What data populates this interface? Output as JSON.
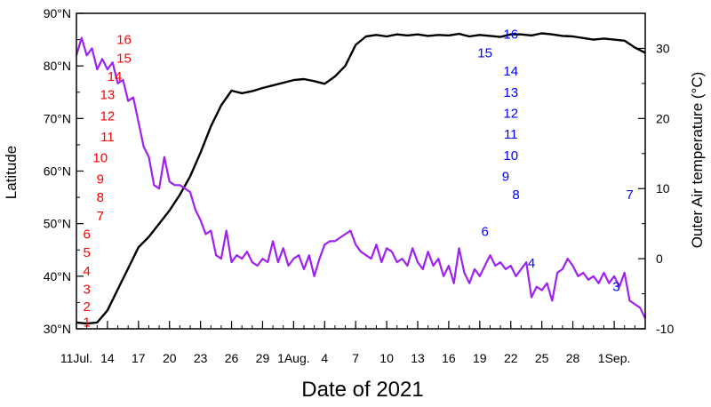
{
  "chart_data": {
    "type": "line",
    "title": "",
    "xlabel": "Date of 2021",
    "ylabel_left": "Latitude",
    "ylabel_right": "Outer Air temperature (°C)",
    "x_range": [
      "2021-07-11",
      "2021-09-04"
    ],
    "y_left_range": [
      30,
      90
    ],
    "y_right_range": [
      -10,
      35
    ],
    "x_ticks": [
      {
        "date": "2021-07-11",
        "label": "11Jul."
      },
      {
        "date": "2021-07-14",
        "label": "14"
      },
      {
        "date": "2021-07-17",
        "label": "17"
      },
      {
        "date": "2021-07-20",
        "label": "20"
      },
      {
        "date": "2021-07-23",
        "label": "23"
      },
      {
        "date": "2021-07-26",
        "label": "26"
      },
      {
        "date": "2021-07-29",
        "label": "29"
      },
      {
        "date": "2021-08-01",
        "label": "1Aug."
      },
      {
        "date": "2021-08-04",
        "label": "4"
      },
      {
        "date": "2021-08-07",
        "label": "7"
      },
      {
        "date": "2021-08-10",
        "label": "10"
      },
      {
        "date": "2021-08-13",
        "label": "13"
      },
      {
        "date": "2021-08-16",
        "label": "16"
      },
      {
        "date": "2021-08-19",
        "label": "19"
      },
      {
        "date": "2021-08-22",
        "label": "22"
      },
      {
        "date": "2021-08-25",
        "label": "25"
      },
      {
        "date": "2021-08-28",
        "label": "28"
      },
      {
        "date": "2021-09-01",
        "label": "1Sep."
      }
    ],
    "y_left_ticks": [
      {
        "value": 30,
        "label": "30°N"
      },
      {
        "value": 40,
        "label": "40°N"
      },
      {
        "value": 50,
        "label": "50°N"
      },
      {
        "value": 60,
        "label": "60°N"
      },
      {
        "value": 70,
        "label": "70°N"
      },
      {
        "value": 80,
        "label": "80°N"
      },
      {
        "value": 90,
        "label": "90°N"
      }
    ],
    "y_right_ticks": [
      {
        "value": -10,
        "label": "-10"
      },
      {
        "value": 0,
        "label": "0"
      },
      {
        "value": 10,
        "label": "10"
      },
      {
        "value": 20,
        "label": "20"
      },
      {
        "value": 30,
        "label": "30"
      }
    ],
    "colors": {
      "latitude": "#000000",
      "temperature": "#a020f0",
      "anno_red": "#ff0000",
      "anno_blue": "#0000ff"
    },
    "series": [
      {
        "axis": "left",
        "color": "#000000",
        "points": [
          [
            "2021-07-11",
            31.2
          ],
          [
            "2021-07-12",
            31.0
          ],
          [
            "2021-07-13",
            31.2
          ],
          [
            "2021-07-14",
            33.5
          ],
          [
            "2021-07-15",
            37.5
          ],
          [
            "2021-07-16",
            41.5
          ],
          [
            "2021-07-17",
            45.5
          ],
          [
            "2021-07-18",
            47.5
          ],
          [
            "2021-07-19",
            50.0
          ],
          [
            "2021-07-20",
            52.5
          ],
          [
            "2021-07-21",
            55.5
          ],
          [
            "2021-07-22",
            59.0
          ],
          [
            "2021-07-23",
            63.5
          ],
          [
            "2021-07-24",
            68.5
          ],
          [
            "2021-07-25",
            72.5
          ],
          [
            "2021-07-26",
            75.3
          ],
          [
            "2021-07-27",
            74.8
          ],
          [
            "2021-07-28",
            75.2
          ],
          [
            "2021-07-29",
            75.8
          ],
          [
            "2021-07-30",
            76.3
          ],
          [
            "2021-07-31",
            76.8
          ],
          [
            "2021-08-01",
            77.3
          ],
          [
            "2021-08-02",
            77.5
          ],
          [
            "2021-08-03",
            77.1
          ],
          [
            "2021-08-04",
            76.6
          ],
          [
            "2021-08-05",
            78.0
          ],
          [
            "2021-08-06",
            80.0
          ],
          [
            "2021-08-07",
            84.0
          ],
          [
            "2021-08-08",
            85.6
          ],
          [
            "2021-08-09",
            85.9
          ],
          [
            "2021-08-10",
            85.6
          ],
          [
            "2021-08-11",
            86.0
          ],
          [
            "2021-08-12",
            85.8
          ],
          [
            "2021-08-13",
            86.0
          ],
          [
            "2021-08-14",
            85.7
          ],
          [
            "2021-08-15",
            85.9
          ],
          [
            "2021-08-16",
            85.8
          ],
          [
            "2021-08-17",
            86.1
          ],
          [
            "2021-08-18",
            85.6
          ],
          [
            "2021-08-19",
            85.9
          ],
          [
            "2021-08-20",
            85.7
          ],
          [
            "2021-08-21",
            85.5
          ],
          [
            "2021-08-22",
            86.0
          ],
          [
            "2021-08-23",
            86.0
          ],
          [
            "2021-08-24",
            85.8
          ],
          [
            "2021-08-25",
            86.2
          ],
          [
            "2021-08-26",
            86.0
          ],
          [
            "2021-08-27",
            85.7
          ],
          [
            "2021-08-28",
            85.6
          ],
          [
            "2021-08-29",
            85.3
          ],
          [
            "2021-08-30",
            85.0
          ],
          [
            "2021-08-31",
            85.2
          ],
          [
            "2021-09-01",
            85.0
          ],
          [
            "2021-09-02",
            84.8
          ],
          [
            "2021-09-03",
            83.5
          ],
          [
            "2021-09-04",
            82.5
          ]
        ]
      },
      {
        "axis": "right",
        "color": "#a020f0",
        "points": [
          [
            "2021-07-11",
            29.0
          ],
          [
            "2021-07-11.5",
            31.5
          ],
          [
            "2021-07-12",
            29.0
          ],
          [
            "2021-07-12.5",
            30.0
          ],
          [
            "2021-07-13",
            27.0
          ],
          [
            "2021-07-13.5",
            28.5
          ],
          [
            "2021-07-14",
            27.0
          ],
          [
            "2021-07-14.5",
            28.0
          ],
          [
            "2021-07-15",
            25.0
          ],
          [
            "2021-07-15.5",
            25.5
          ],
          [
            "2021-07-16",
            22.5
          ],
          [
            "2021-07-16.5",
            23.0
          ],
          [
            "2021-07-17",
            19.5
          ],
          [
            "2021-07-17.5",
            16.0
          ],
          [
            "2021-07-18",
            14.5
          ],
          [
            "2021-07-18.5",
            10.5
          ],
          [
            "2021-07-19",
            10.0
          ],
          [
            "2021-07-19.5",
            14.5
          ],
          [
            "2021-07-20",
            11.0
          ],
          [
            "2021-07-20.5",
            10.5
          ],
          [
            "2021-07-21",
            10.5
          ],
          [
            "2021-07-21.5",
            10.0
          ],
          [
            "2021-07-22",
            9.5
          ],
          [
            "2021-07-22.5",
            7.0
          ],
          [
            "2021-07-23",
            5.5
          ],
          [
            "2021-07-23.5",
            3.5
          ],
          [
            "2021-07-24",
            4.0
          ],
          [
            "2021-07-24.5",
            0.5
          ],
          [
            "2021-07-25",
            0.0
          ],
          [
            "2021-07-25.5",
            4.0
          ],
          [
            "2021-07-26",
            -0.5
          ],
          [
            "2021-07-26.5",
            0.5
          ],
          [
            "2021-07-27",
            0.0
          ],
          [
            "2021-07-27.5",
            1.0
          ],
          [
            "2021-07-28",
            -0.5
          ],
          [
            "2021-07-28.5",
            -1.0
          ],
          [
            "2021-07-29",
            0.0
          ],
          [
            "2021-07-29.5",
            -0.5
          ],
          [
            "2021-07-30",
            2.5
          ],
          [
            "2021-07-30.5",
            -0.5
          ],
          [
            "2021-07-31",
            1.5
          ],
          [
            "2021-07-31.5",
            -1.0
          ],
          [
            "2021-08-01",
            0.0
          ],
          [
            "2021-08-01.5",
            0.5
          ],
          [
            "2021-08-02",
            -1.5
          ],
          [
            "2021-08-02.5",
            0.5
          ],
          [
            "2021-08-03",
            -2.5
          ],
          [
            "2021-08-03.5",
            0.0
          ],
          [
            "2021-08-04",
            2.0
          ],
          [
            "2021-08-04.5",
            2.5
          ],
          [
            "2021-08-05",
            2.5
          ],
          [
            "2021-08-05.5",
            3.0
          ],
          [
            "2021-08-06",
            3.5
          ],
          [
            "2021-08-06.5",
            4.0
          ],
          [
            "2021-08-07",
            2.0
          ],
          [
            "2021-08-07.5",
            1.0
          ],
          [
            "2021-08-08",
            0.5
          ],
          [
            "2021-08-08.5",
            0.0
          ],
          [
            "2021-08-09",
            2.0
          ],
          [
            "2021-08-09.5",
            -0.5
          ],
          [
            "2021-08-10",
            1.5
          ],
          [
            "2021-08-10.5",
            1.0
          ],
          [
            "2021-08-11",
            -0.5
          ],
          [
            "2021-08-11.5",
            0.0
          ],
          [
            "2021-08-12",
            -1.0
          ],
          [
            "2021-08-12.5",
            1.5
          ],
          [
            "2021-08-13",
            -0.5
          ],
          [
            "2021-08-13.5",
            -1.5
          ],
          [
            "2021-08-14",
            1.0
          ],
          [
            "2021-08-14.5",
            -1.0
          ],
          [
            "2021-08-15",
            0.0
          ],
          [
            "2021-08-15.5",
            -2.5
          ],
          [
            "2021-08-16",
            -1.0
          ],
          [
            "2021-08-16.5",
            -3.5
          ],
          [
            "2021-08-17",
            1.5
          ],
          [
            "2021-08-17.5",
            -2.0
          ],
          [
            "2021-08-18",
            -3.5
          ],
          [
            "2021-08-18.5",
            -1.5
          ],
          [
            "2021-08-19",
            -2.5
          ],
          [
            "2021-08-19.5",
            -1.0
          ],
          [
            "2021-08-20",
            0.5
          ],
          [
            "2021-08-20.5",
            -1.0
          ],
          [
            "2021-08-21",
            -0.5
          ],
          [
            "2021-08-21.5",
            -1.5
          ],
          [
            "2021-08-22",
            -1.0
          ],
          [
            "2021-08-22.5",
            -2.5
          ],
          [
            "2021-08-23",
            -1.5
          ],
          [
            "2021-08-23.5",
            -0.5
          ],
          [
            "2021-08-24",
            -5.5
          ],
          [
            "2021-08-24.5",
            -4.0
          ],
          [
            "2021-08-25",
            -4.5
          ],
          [
            "2021-08-25.5",
            -3.5
          ],
          [
            "2021-08-26",
            -6.0
          ],
          [
            "2021-08-26.5",
            -2.0
          ],
          [
            "2021-08-27",
            -1.5
          ],
          [
            "2021-08-27.5",
            0.0
          ],
          [
            "2021-08-28",
            -1.0
          ],
          [
            "2021-08-28.5",
            -2.5
          ],
          [
            "2021-08-29",
            -2.0
          ],
          [
            "2021-08-29.5",
            -3.0
          ],
          [
            "2021-08-30",
            -2.5
          ],
          [
            "2021-08-30.5",
            -3.5
          ],
          [
            "2021-08-31",
            -2.0
          ],
          [
            "2021-08-31.5",
            -3.5
          ],
          [
            "2021-09-01",
            -2.5
          ],
          [
            "2021-09-01.5",
            -4.0
          ],
          [
            "2021-09-02",
            -2.0
          ],
          [
            "2021-09-02.5",
            -6.0
          ],
          [
            "2021-09-03",
            -6.5
          ],
          [
            "2021-09-03.5",
            -7.0
          ],
          [
            "2021-09-04",
            -8.5
          ]
        ]
      }
    ],
    "annotations_red": [
      {
        "label": "1",
        "date": "2021-07-11",
        "offset_days": 1.0,
        "lat": 31.3
      },
      {
        "label": "2",
        "date": "2021-07-11",
        "offset_days": 1.0,
        "lat": 34.2
      },
      {
        "label": "3",
        "date": "2021-07-11",
        "offset_days": 1.0,
        "lat": 37.5
      },
      {
        "label": "4",
        "date": "2021-07-11",
        "offset_days": 1.0,
        "lat": 41.0
      },
      {
        "label": "5",
        "date": "2021-07-11",
        "offset_days": 1.0,
        "lat": 44.5
      },
      {
        "label": "6",
        "date": "2021-07-11",
        "offset_days": 1.0,
        "lat": 48.0
      },
      {
        "label": "7",
        "date": "2021-07-11",
        "offset_days": 2.3,
        "lat": 51.5
      },
      {
        "label": "8",
        "date": "2021-07-11",
        "offset_days": 2.3,
        "lat": 55.0
      },
      {
        "label": "9",
        "date": "2021-07-11",
        "offset_days": 2.3,
        "lat": 58.5
      },
      {
        "label": "10",
        "date": "2021-07-11",
        "offset_days": 2.3,
        "lat": 62.5
      },
      {
        "label": "11",
        "date": "2021-07-11",
        "offset_days": 3.0,
        "lat": 66.5
      },
      {
        "label": "12",
        "date": "2021-07-11",
        "offset_days": 3.0,
        "lat": 70.5
      },
      {
        "label": "13",
        "date": "2021-07-11",
        "offset_days": 3.0,
        "lat": 74.5
      },
      {
        "label": "14",
        "date": "2021-07-11",
        "offset_days": 3.7,
        "lat": 78.0
      },
      {
        "label": "15",
        "date": "2021-07-11",
        "offset_days": 4.6,
        "lat": 81.5
      },
      {
        "label": "16",
        "date": "2021-07-11",
        "offset_days": 4.6,
        "lat": 85.0
      }
    ],
    "annotations_blue": [
      {
        "label": "3",
        "date": "2021-08-31",
        "offset_days": 1.2,
        "lat": 38.0
      },
      {
        "label": "4",
        "date": "2021-08-24",
        "offset_days": 0.0,
        "lat": 42.5
      },
      {
        "label": "6",
        "date": "2021-08-19",
        "offset_days": 0.5,
        "lat": 48.5
      },
      {
        "label": "7",
        "date": "2021-09-03",
        "offset_days": -0.5,
        "lat": 55.5
      },
      {
        "label": "8",
        "date": "2021-08-23",
        "offset_days": -0.5,
        "lat": 55.5
      },
      {
        "label": "9",
        "date": "2021-08-21",
        "offset_days": 0.5,
        "lat": 59.0
      },
      {
        "label": "10",
        "date": "2021-08-22",
        "offset_days": 0.0,
        "lat": 63.0
      },
      {
        "label": "11",
        "date": "2021-08-22",
        "offset_days": 0.0,
        "lat": 67.0
      },
      {
        "label": "12",
        "date": "2021-08-22",
        "offset_days": 0.0,
        "lat": 71.0
      },
      {
        "label": "13",
        "date": "2021-08-22",
        "offset_days": 0.0,
        "lat": 75.0
      },
      {
        "label": "14",
        "date": "2021-08-22",
        "offset_days": 0.0,
        "lat": 79.0
      },
      {
        "label": "15",
        "date": "2021-08-19",
        "offset_days": 0.5,
        "lat": 82.5
      },
      {
        "label": "16",
        "date": "2021-08-22",
        "offset_days": 0.0,
        "lat": 86.0
      }
    ]
  }
}
